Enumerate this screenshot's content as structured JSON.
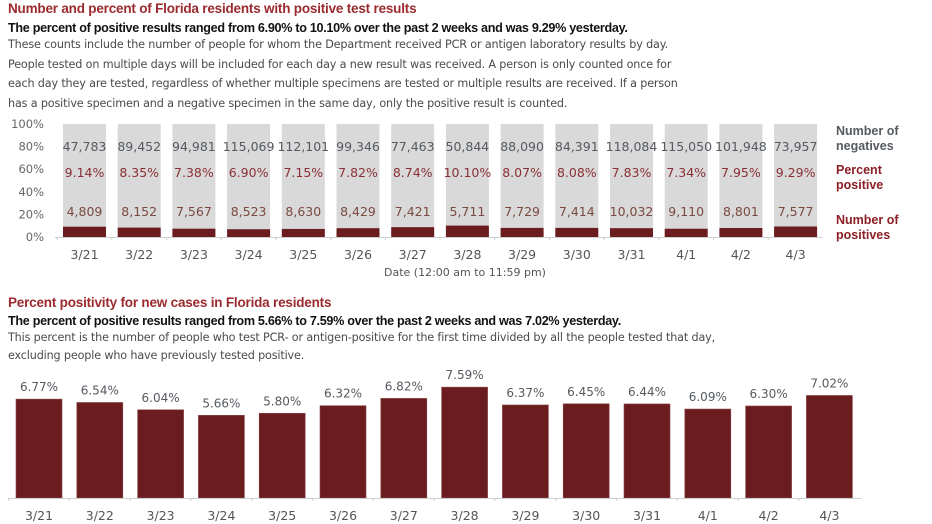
{
  "section1": {
    "title": "Number and percent of Florida residents with positive test results",
    "subtitle": "The percent of positive results ranged from 6.90% to 10.10% over the past 2 weeks and was 9.29% yesterday.",
    "description": [
      "These counts include the number of people for whom the Department received PCR or antigen laboratory results by day.",
      "People tested on multiple days will be included for each day a new result was received. A person is only counted once for",
      "each day they are tested, regardless of whether multiple specimens are tested or multiple results are received. If a person",
      "has a positive specimen and a negative specimen in the same day, only the positive result is counted."
    ]
  },
  "section2": {
    "title": "Percent positivity for new cases in Florida residents",
    "subtitle": "The percent of positive results ranged from 5.66% to 7.59% over the past 2 weeks and was 7.02% yesterday.",
    "description": [
      "This percent is the number of people who test PCR- or antigen-positive for the first time divided by all the people tested that day,",
      "excluding people who have previously tested positive."
    ]
  },
  "colors": {
    "positive": "#6b1c1f",
    "negative": "#d9d9d9",
    "title": "#9b2a2f",
    "percent_text": "#8a3035"
  },
  "chart_data": [
    {
      "type": "bar",
      "stacked": true,
      "title": "Number and percent of Florida residents with positive test results",
      "categories": [
        "3/21",
        "3/22",
        "3/23",
        "3/24",
        "3/25",
        "3/26",
        "3/27",
        "3/28",
        "3/29",
        "3/30",
        "3/31",
        "4/1",
        "4/2",
        "4/3"
      ],
      "series": [
        {
          "name": "Number of negatives",
          "values": [
            47783,
            89452,
            94981,
            115069,
            112101,
            99346,
            77463,
            50844,
            88090,
            84391,
            118084,
            115050,
            101948,
            73957
          ]
        },
        {
          "name": "Number of positives",
          "values": [
            4809,
            8152,
            7567,
            8523,
            8630,
            8429,
            7421,
            5711,
            7729,
            7414,
            10032,
            9110,
            8801,
            7577
          ]
        }
      ],
      "percent_positive": [
        9.14,
        8.35,
        7.38,
        6.9,
        7.15,
        7.82,
        8.74,
        10.1,
        8.07,
        8.08,
        7.83,
        7.34,
        7.95,
        9.29
      ],
      "data_labels": {
        "negatives": [
          "47,783",
          "89,452",
          "94,981",
          "115,069",
          "112,101",
          "99,346",
          "77,463",
          "50,844",
          "88,090",
          "84,391",
          "118,084",
          "115,050",
          "101,948",
          "73,957"
        ],
        "percent": [
          "9.14%",
          "8.35%",
          "7.38%",
          "6.90%",
          "7.15%",
          "7.82%",
          "8.74%",
          "10.10%",
          "8.07%",
          "8.08%",
          "7.83%",
          "7.34%",
          "7.95%",
          "9.29%"
        ],
        "positives": [
          "4,809",
          "8,152",
          "7,567",
          "8,523",
          "8,630",
          "8,429",
          "7,421",
          "5,711",
          "7,729",
          "7,414",
          "10,032",
          "9,110",
          "8,801",
          "7,577"
        ]
      },
      "legend": [
        "Number of negatives",
        "Percent positive",
        "Number of positives"
      ],
      "legend_placement": "right",
      "xlabel": "Date (12:00 am to 11:59 pm)",
      "ylabel": "",
      "yticks": [
        "0%",
        "20%",
        "40%",
        "60%",
        "80%",
        "100%"
      ],
      "ylim": [
        0,
        100
      ],
      "normalized_percent": true,
      "grid": false
    },
    {
      "type": "bar",
      "title": "Percent positivity for new cases in Florida residents",
      "categories": [
        "3/21",
        "3/22",
        "3/23",
        "3/24",
        "3/25",
        "3/26",
        "3/27",
        "3/28",
        "3/29",
        "3/30",
        "3/31",
        "4/1",
        "4/2",
        "4/3"
      ],
      "values": [
        6.77,
        6.54,
        6.04,
        5.66,
        5.8,
        6.32,
        6.82,
        7.59,
        6.37,
        6.45,
        6.44,
        6.09,
        6.3,
        7.02
      ],
      "data_labels": [
        "6.77%",
        "6.54%",
        "6.04%",
        "5.66%",
        "5.80%",
        "6.32%",
        "6.82%",
        "7.59%",
        "6.37%",
        "6.45%",
        "6.44%",
        "6.09%",
        "6.30%",
        "7.02%"
      ],
      "xlabel": "",
      "ylabel": "",
      "ylim": [
        0,
        8.9
      ],
      "grid": false
    }
  ]
}
